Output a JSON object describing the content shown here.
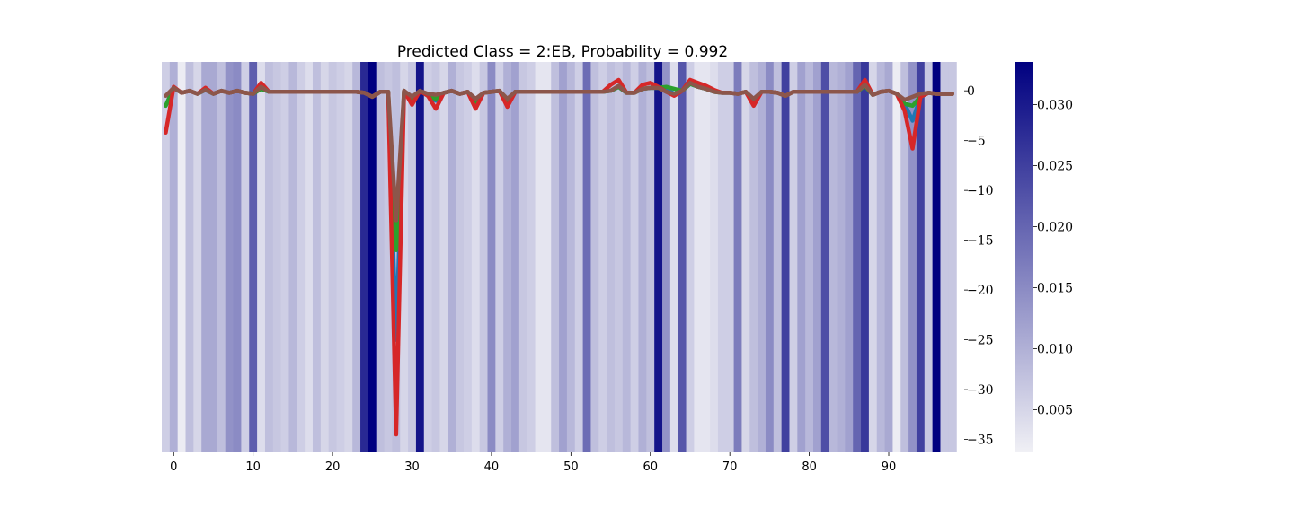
{
  "chart_data": {
    "type": "line",
    "title": "Predicted Class = 2:EB, Probability = 0.992",
    "x_range": [
      -1,
      99
    ],
    "ylim": [
      -36.3,
      2.9
    ],
    "x_ticks": [
      0,
      10,
      20,
      30,
      40,
      50,
      60,
      70,
      80,
      90
    ],
    "y_ticks": [
      0,
      -5,
      -10,
      -15,
      -20,
      -25,
      -30,
      -35
    ],
    "x_tick_labels": [
      "0",
      "10",
      "20",
      "30",
      "40",
      "50",
      "60",
      "70",
      "80",
      "90"
    ],
    "y_tick_labels": [
      "0",
      "−5",
      "−10",
      "−15",
      "−20",
      "−25",
      "−30",
      "−35"
    ],
    "y_axis_side": "right",
    "grid": false,
    "heatmap": {
      "colormap": "white-to-navy",
      "colors": [
        "#f0f0f5",
        "#000080"
      ],
      "range": [
        0.0015,
        0.0335
      ],
      "x": [
        -1,
        0,
        1,
        2,
        3,
        4,
        5,
        6,
        7,
        8,
        9,
        10,
        11,
        12,
        13,
        14,
        15,
        16,
        17,
        18,
        19,
        20,
        21,
        22,
        23,
        24,
        25,
        26,
        27,
        28,
        29,
        30,
        31,
        32,
        33,
        34,
        35,
        36,
        37,
        38,
        39,
        40,
        41,
        42,
        43,
        44,
        45,
        46,
        47,
        48,
        49,
        50,
        51,
        52,
        53,
        54,
        55,
        56,
        57,
        58,
        59,
        60,
        61,
        62,
        63,
        64,
        65,
        66,
        67,
        68,
        69,
        70,
        71,
        72,
        73,
        74,
        75,
        76,
        77,
        78,
        79,
        80,
        81,
        82,
        83,
        84,
        85,
        86,
        87,
        88,
        89,
        90,
        91,
        92,
        93,
        94,
        95,
        96,
        97,
        98
      ],
      "values": [
        0.006,
        0.01,
        0.002,
        0.008,
        0.005,
        0.011,
        0.011,
        0.008,
        0.014,
        0.015,
        0.006,
        0.021,
        0.004,
        0.008,
        0.007,
        0.006,
        0.009,
        0.006,
        0.004,
        0.008,
        0.005,
        0.007,
        0.006,
        0.005,
        0.009,
        0.028,
        0.034,
        0.008,
        0.007,
        0.008,
        0.005,
        0.007,
        0.031,
        0.006,
        0.007,
        0.005,
        0.01,
        0.007,
        0.006,
        0.004,
        0.007,
        0.015,
        0.006,
        0.01,
        0.012,
        0.007,
        0.006,
        0.003,
        0.003,
        0.008,
        0.012,
        0.009,
        0.006,
        0.019,
        0.008,
        0.006,
        0.008,
        0.007,
        0.009,
        0.006,
        0.01,
        0.008,
        0.031,
        0.014,
        0.004,
        0.022,
        0.006,
        0.003,
        0.003,
        0.004,
        0.006,
        0.006,
        0.017,
        0.005,
        0.008,
        0.01,
        0.015,
        0.008,
        0.025,
        0.006,
        0.012,
        0.009,
        0.012,
        0.023,
        0.009,
        0.01,
        0.012,
        0.02,
        0.026,
        0.005,
        0.009,
        0.011,
        0.002,
        0.008,
        0.014,
        0.025,
        0.007,
        0.034,
        0.007,
        0.007
      ]
    },
    "colorbar": {
      "ticks": [
        0.005,
        0.01,
        0.015,
        0.02,
        0.025,
        0.03
      ],
      "tick_labels": [
        "0.005",
        "0.010",
        "0.015",
        "0.020",
        "0.025",
        "0.030"
      ]
    },
    "series": [
      {
        "color": "#1f77b4",
        "x": [
          -1,
          0,
          1,
          2,
          3,
          4,
          5,
          6,
          7,
          8,
          9,
          10,
          11,
          12,
          13,
          14,
          15,
          16,
          17,
          18,
          19,
          20,
          21,
          22,
          23,
          24,
          25,
          26,
          27,
          28,
          29,
          30,
          31,
          32,
          33,
          34,
          35,
          36,
          37,
          38,
          39,
          40,
          41,
          42,
          43,
          44,
          45,
          46,
          47,
          48,
          49,
          50,
          51,
          52,
          53,
          54,
          55,
          56,
          57,
          58,
          59,
          60,
          61,
          62,
          63,
          64,
          65,
          66,
          67,
          68,
          69,
          70,
          71,
          72,
          73,
          74,
          75,
          76,
          77,
          78,
          79,
          80,
          81,
          82,
          83,
          84,
          85,
          86,
          87,
          88,
          89,
          90,
          91,
          92,
          93,
          94,
          95,
          96,
          97,
          98
        ],
        "y": [
          -1.5,
          0.3,
          -0.2,
          0,
          -0.3,
          0.1,
          -0.3,
          0,
          -0.2,
          0,
          -0.2,
          -0.3,
          0.2,
          -0.1,
          -0.1,
          -0.1,
          -0.1,
          -0.1,
          -0.1,
          -0.1,
          -0.1,
          -0.1,
          -0.1,
          -0.1,
          -0.1,
          -0.2,
          -0.6,
          -0.1,
          -0.1,
          -25,
          0,
          -1,
          0,
          -0.5,
          -1,
          -0.2,
          0,
          -0.3,
          -0.1,
          -1.2,
          -0.2,
          -0.1,
          0,
          -1.2,
          -0.1,
          -0.1,
          -0.1,
          -0.1,
          -0.1,
          -0.1,
          -0.1,
          -0.1,
          -0.1,
          -0.1,
          -0.1,
          -0.1,
          0,
          0.4,
          -0.2,
          -0.2,
          0.2,
          0.3,
          0.3,
          0.2,
          -0.3,
          0,
          0.7,
          0.4,
          0.2,
          -0.1,
          -0.2,
          -0.2,
          -0.3,
          -0.1,
          -1,
          -0.1,
          -0.1,
          -0.2,
          -0.5,
          -0.1,
          -0.1,
          -0.1,
          -0.1,
          -0.1,
          -0.1,
          -0.1,
          -0.1,
          -0.1,
          0.5,
          -0.4,
          -0.1,
          0,
          -0.3,
          -1.3,
          -3,
          -0.6,
          -0.2,
          -0.3,
          -0.3,
          -0.3
        ]
      },
      {
        "color": "#2ca02c",
        "x": [
          -1,
          0,
          1,
          2,
          3,
          4,
          5,
          6,
          7,
          8,
          9,
          10,
          11,
          12,
          13,
          14,
          15,
          16,
          17,
          18,
          19,
          20,
          21,
          22,
          23,
          24,
          25,
          26,
          27,
          28,
          29,
          30,
          31,
          32,
          33,
          34,
          35,
          36,
          37,
          38,
          39,
          40,
          41,
          42,
          43,
          44,
          45,
          46,
          47,
          48,
          49,
          50,
          51,
          52,
          53,
          54,
          55,
          56,
          57,
          58,
          59,
          60,
          61,
          62,
          63,
          64,
          65,
          66,
          67,
          68,
          69,
          70,
          71,
          72,
          73,
          74,
          75,
          76,
          77,
          78,
          79,
          80,
          81,
          82,
          83,
          84,
          85,
          86,
          87,
          88,
          89,
          90,
          91,
          92,
          93,
          94,
          95,
          96,
          97,
          98
        ],
        "y": [
          -1.5,
          0.3,
          -0.2,
          0,
          -0.3,
          0.1,
          -0.3,
          0,
          -0.2,
          0,
          -0.2,
          -0.3,
          0.2,
          -0.1,
          -0.1,
          -0.1,
          -0.1,
          -0.1,
          -0.1,
          -0.1,
          -0.1,
          -0.1,
          -0.1,
          -0.1,
          -0.1,
          -0.2,
          -0.6,
          -0.1,
          -0.1,
          -16,
          0,
          -1,
          0,
          -0.5,
          -0.8,
          -0.2,
          0,
          -0.3,
          -0.1,
          -1.1,
          -0.2,
          -0.1,
          0,
          -1.1,
          -0.1,
          -0.1,
          -0.1,
          -0.1,
          -0.1,
          -0.1,
          -0.1,
          -0.1,
          -0.1,
          -0.1,
          -0.1,
          -0.1,
          0,
          0.4,
          -0.2,
          -0.2,
          0.2,
          0.3,
          0.3,
          0.4,
          0.2,
          0,
          0.7,
          0.4,
          0.2,
          -0.1,
          -0.2,
          -0.2,
          -0.3,
          -0.1,
          -1,
          -0.1,
          -0.1,
          -0.2,
          -0.5,
          -0.1,
          -0.1,
          -0.1,
          -0.1,
          -0.1,
          -0.1,
          -0.1,
          -0.1,
          -0.1,
          0.5,
          -0.4,
          -0.1,
          0,
          -0.3,
          -1.3,
          -1.5,
          -0.6,
          -0.2,
          -0.3,
          -0.3,
          -0.3
        ]
      },
      {
        "color": "#d62728",
        "x": [
          -1,
          0,
          1,
          2,
          3,
          4,
          5,
          6,
          7,
          8,
          9,
          10,
          11,
          12,
          13,
          14,
          15,
          16,
          17,
          18,
          19,
          20,
          21,
          22,
          23,
          24,
          25,
          26,
          27,
          28,
          29,
          30,
          31,
          32,
          33,
          34,
          35,
          36,
          37,
          38,
          39,
          40,
          41,
          42,
          43,
          44,
          45,
          46,
          47,
          48,
          49,
          50,
          51,
          52,
          53,
          54,
          55,
          56,
          57,
          58,
          59,
          60,
          61,
          62,
          63,
          64,
          65,
          66,
          67,
          68,
          69,
          70,
          71,
          72,
          73,
          74,
          75,
          76,
          77,
          78,
          79,
          80,
          81,
          82,
          83,
          84,
          85,
          86,
          87,
          88,
          89,
          90,
          91,
          92,
          93,
          94,
          95,
          96,
          97,
          98
        ],
        "y": [
          -4.2,
          0.4,
          -0.2,
          0,
          -0.3,
          0.3,
          -0.3,
          0,
          -0.2,
          0,
          -0.2,
          -0.3,
          0.8,
          -0.1,
          -0.1,
          -0.1,
          -0.1,
          -0.1,
          -0.1,
          -0.1,
          -0.1,
          -0.1,
          -0.1,
          -0.1,
          -0.1,
          -0.2,
          -0.6,
          -0.1,
          -0.1,
          -34.5,
          0,
          -1.4,
          0,
          -0.5,
          -1.8,
          -0.2,
          0,
          -0.3,
          -0.1,
          -1.8,
          -0.2,
          -0.1,
          0,
          -1.6,
          -0.1,
          -0.1,
          -0.1,
          -0.1,
          -0.1,
          -0.1,
          -0.1,
          -0.1,
          -0.1,
          -0.1,
          -0.1,
          -0.1,
          0.6,
          1.1,
          -0.2,
          -0.2,
          0.6,
          0.8,
          0.4,
          -0.1,
          -0.5,
          0,
          1.1,
          0.8,
          0.5,
          0.1,
          -0.2,
          -0.2,
          -0.3,
          -0.1,
          -1.5,
          -0.1,
          -0.1,
          -0.2,
          -0.5,
          -0.1,
          -0.1,
          -0.1,
          -0.1,
          -0.1,
          -0.1,
          -0.1,
          -0.1,
          -0.1,
          1.1,
          -0.4,
          -0.1,
          0,
          -0.3,
          -2,
          -5.8,
          -0.6,
          -0.2,
          -0.3,
          -0.3,
          -0.3
        ]
      },
      {
        "color": "#8c564b",
        "x": [
          -1,
          0,
          1,
          2,
          3,
          4,
          5,
          6,
          7,
          8,
          9,
          10,
          11,
          12,
          13,
          14,
          15,
          16,
          17,
          18,
          19,
          20,
          21,
          22,
          23,
          24,
          25,
          26,
          27,
          28,
          29,
          30,
          31,
          32,
          33,
          34,
          35,
          36,
          37,
          38,
          39,
          40,
          41,
          42,
          43,
          44,
          45,
          46,
          47,
          48,
          49,
          50,
          51,
          52,
          53,
          54,
          55,
          56,
          57,
          58,
          59,
          60,
          61,
          62,
          63,
          64,
          65,
          66,
          67,
          68,
          69,
          70,
          71,
          72,
          73,
          74,
          75,
          76,
          77,
          78,
          79,
          80,
          81,
          82,
          83,
          84,
          85,
          86,
          87,
          88,
          89,
          90,
          91,
          92,
          93,
          94,
          95,
          96,
          97,
          98
        ],
        "y": [
          -0.5,
          0.3,
          -0.2,
          0,
          -0.3,
          0.1,
          -0.3,
          0,
          -0.2,
          0,
          -0.2,
          -0.3,
          0.4,
          -0.1,
          -0.1,
          -0.1,
          -0.1,
          -0.1,
          -0.1,
          -0.1,
          -0.1,
          -0.1,
          -0.1,
          -0.1,
          -0.1,
          -0.2,
          -0.6,
          -0.1,
          -0.1,
          -13,
          0,
          -0.6,
          0,
          -0.3,
          -0.4,
          -0.2,
          0,
          -0.3,
          -0.1,
          -0.8,
          -0.2,
          -0.1,
          0,
          -0.8,
          -0.1,
          -0.1,
          -0.1,
          -0.1,
          -0.1,
          -0.1,
          -0.1,
          -0.1,
          -0.1,
          -0.1,
          -0.1,
          -0.1,
          0,
          0.5,
          -0.2,
          -0.2,
          0.2,
          0.3,
          0.3,
          -0.1,
          -0.3,
          0,
          0.8,
          0.4,
          0.2,
          -0.1,
          -0.2,
          -0.2,
          -0.3,
          -0.1,
          -0.8,
          -0.1,
          -0.1,
          -0.2,
          -0.5,
          -0.1,
          -0.1,
          -0.1,
          -0.1,
          -0.1,
          -0.1,
          -0.1,
          -0.1,
          -0.1,
          0.6,
          -0.4,
          -0.1,
          0,
          -0.3,
          -0.9,
          -0.6,
          -0.3,
          -0.2,
          -0.3,
          -0.3,
          -0.3
        ]
      }
    ]
  }
}
